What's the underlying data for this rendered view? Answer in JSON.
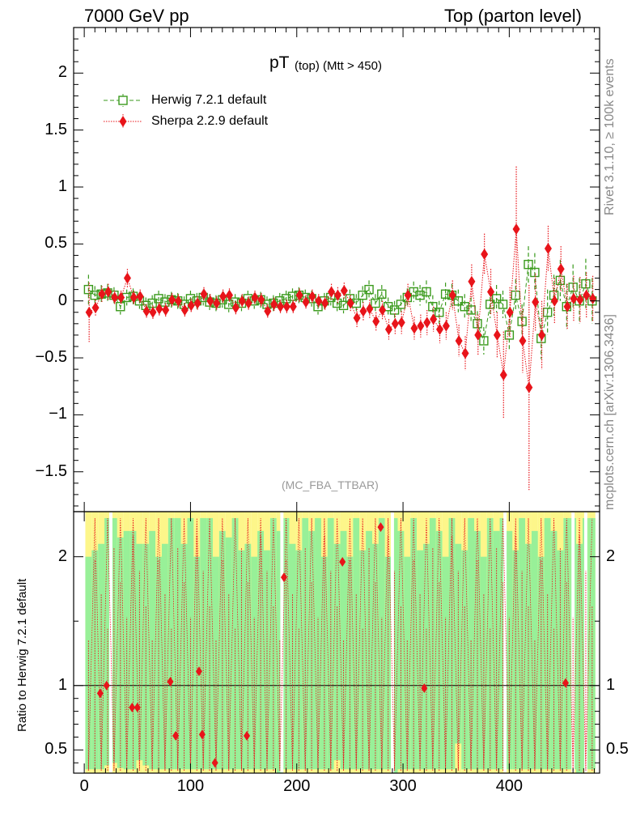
{
  "header": {
    "left": "7000 GeV pp",
    "right": "Top (parton level)"
  },
  "side_labels": {
    "rivet": "Rivet 3.1.10, ≥ 100k events",
    "mcplots": "mcplots.cern.ch [arXiv:1306.3436]"
  },
  "chart_data": [
    {
      "type": "scatter",
      "title_main": "pT",
      "title_sub": "(top) (Mtt > 450)",
      "analysis_tag": "(MC_FBA_TTBAR)",
      "xlim": [
        -10,
        485
      ],
      "ylim": [
        -1.85,
        2.4
      ],
      "y_ticks": [
        -1.5,
        -1,
        -0.5,
        0,
        0.5,
        1,
        1.5,
        2
      ],
      "y_tick_labels": [
        "−1.5",
        "−1",
        "−0.5",
        "0",
        "0.5",
        "1",
        "1.5",
        "2"
      ],
      "legend_position": "top-left",
      "series": [
        {
          "name": "Herwig 7.2.1 default",
          "color": "#3a9a1c",
          "marker": "open-square",
          "line": "dashed",
          "x": [
            4,
            10,
            16,
            22,
            28,
            34,
            40,
            46,
            52,
            58,
            64,
            70,
            76,
            82,
            88,
            94,
            100,
            106,
            112,
            118,
            124,
            130,
            136,
            142,
            148,
            154,
            160,
            166,
            172,
            178,
            184,
            190,
            196,
            202,
            208,
            214,
            220,
            226,
            232,
            238,
            244,
            250,
            256,
            262,
            268,
            274,
            280,
            286,
            292,
            298,
            304,
            310,
            316,
            322,
            328,
            334,
            340,
            346,
            352,
            358,
            364,
            370,
            376,
            382,
            388,
            394,
            400,
            406,
            412,
            418,
            424,
            430,
            436,
            442,
            448,
            454,
            460,
            466,
            472,
            478
          ],
          "y": [
            0.1,
            0.05,
            0.06,
            0.07,
            0.05,
            -0.05,
            0.03,
            0.04,
            0.0,
            -0.04,
            -0.02,
            0.02,
            -0.01,
            0.01,
            0.0,
            -0.03,
            0.02,
            0.0,
            0.03,
            -0.01,
            -0.02,
            0.01,
            -0.03,
            -0.01,
            -0.02,
            0.02,
            0.0,
            0.01,
            -0.03,
            -0.02,
            0.0,
            0.02,
            0.04,
            0.05,
            0.03,
            0.02,
            -0.05,
            0.0,
            0.03,
            -0.02,
            -0.04,
            0.02,
            -0.02,
            0.05,
            0.1,
            -0.02,
            0.06,
            -0.05,
            -0.08,
            -0.03,
            0.03,
            0.08,
            0.05,
            0.08,
            -0.05,
            -0.1,
            0.06,
            0.05,
            0.0,
            -0.05,
            -0.08,
            -0.2,
            -0.35,
            -0.03,
            0.02,
            -0.03,
            -0.3,
            0.05,
            -0.18,
            0.32,
            0.25,
            -0.33,
            -0.1,
            0.05,
            0.18,
            -0.05,
            0.12,
            0.0,
            0.15,
            0.0
          ],
          "yerr": [
            0.13,
            0.08,
            0.08,
            0.08,
            0.07,
            0.07,
            0.07,
            0.07,
            0.07,
            0.07,
            0.07,
            0.07,
            0.07,
            0.07,
            0.07,
            0.07,
            0.07,
            0.07,
            0.07,
            0.07,
            0.07,
            0.07,
            0.07,
            0.07,
            0.07,
            0.07,
            0.07,
            0.07,
            0.07,
            0.07,
            0.07,
            0.07,
            0.07,
            0.07,
            0.07,
            0.07,
            0.07,
            0.07,
            0.07,
            0.07,
            0.07,
            0.08,
            0.08,
            0.08,
            0.08,
            0.08,
            0.08,
            0.08,
            0.08,
            0.08,
            0.08,
            0.09,
            0.09,
            0.1,
            0.1,
            0.1,
            0.1,
            0.1,
            0.1,
            0.11,
            0.11,
            0.11,
            0.12,
            0.12,
            0.12,
            0.12,
            0.14,
            0.14,
            0.15,
            0.16,
            0.17,
            0.18,
            0.2,
            0.18,
            0.18,
            0.2,
            0.2,
            0.2,
            0.22,
            0.2
          ]
        },
        {
          "name": "Sherpa 2.2.9 default",
          "color": "#e8141a",
          "marker": "filled-diamond",
          "line": "dotted",
          "x": [
            4,
            10,
            16,
            22,
            28,
            34,
            40,
            46,
            52,
            58,
            64,
            70,
            76,
            82,
            88,
            94,
            100,
            106,
            112,
            118,
            124,
            130,
            136,
            142,
            148,
            154,
            160,
            166,
            172,
            178,
            184,
            190,
            196,
            202,
            208,
            214,
            220,
            226,
            232,
            238,
            244,
            250,
            256,
            262,
            268,
            274,
            280,
            286,
            292,
            298,
            304,
            310,
            316,
            322,
            328,
            334,
            340,
            346,
            352,
            358,
            364,
            370,
            376,
            382,
            388,
            394,
            400,
            406,
            412,
            418,
            424,
            430,
            436,
            442,
            448,
            454,
            460,
            466,
            472,
            478
          ],
          "y": [
            -0.1,
            -0.06,
            0.06,
            0.08,
            0.03,
            0.03,
            0.2,
            0.03,
            0.04,
            -0.09,
            -0.1,
            -0.07,
            -0.08,
            0.01,
            0.0,
            -0.08,
            -0.04,
            -0.02,
            0.06,
            0.0,
            -0.02,
            0.04,
            0.05,
            -0.06,
            0.0,
            -0.02,
            0.03,
            0.01,
            -0.09,
            -0.03,
            -0.05,
            -0.05,
            -0.05,
            0.05,
            -0.01,
            0.04,
            0.0,
            -0.02,
            0.08,
            0.05,
            0.09,
            -0.02,
            -0.15,
            -0.09,
            -0.07,
            -0.18,
            -0.08,
            -0.25,
            -0.2,
            -0.19,
            0.05,
            -0.24,
            -0.22,
            -0.19,
            -0.16,
            -0.25,
            -0.22,
            0.05,
            -0.35,
            -0.46,
            0.17,
            -0.3,
            0.41,
            0.08,
            -0.3,
            -0.65,
            -0.1,
            0.63,
            -0.35,
            -0.76,
            -0.01,
            -0.3,
            0.46,
            0.0,
            0.28,
            -0.05,
            0.02,
            0.01,
            0.05,
            0.02
          ],
          "yerr": [
            0.26,
            0.07,
            0.07,
            0.07,
            0.06,
            0.06,
            0.08,
            0.06,
            0.06,
            0.06,
            0.06,
            0.06,
            0.06,
            0.06,
            0.06,
            0.06,
            0.06,
            0.06,
            0.06,
            0.06,
            0.06,
            0.06,
            0.06,
            0.06,
            0.06,
            0.06,
            0.06,
            0.06,
            0.06,
            0.06,
            0.06,
            0.06,
            0.06,
            0.06,
            0.06,
            0.06,
            0.06,
            0.06,
            0.07,
            0.07,
            0.07,
            0.07,
            0.08,
            0.08,
            0.08,
            0.08,
            0.08,
            0.09,
            0.09,
            0.1,
            0.1,
            0.1,
            0.1,
            0.11,
            0.11,
            0.12,
            0.12,
            0.13,
            0.14,
            0.15,
            0.15,
            0.18,
            0.18,
            0.2,
            0.2,
            0.38,
            0.22,
            0.55,
            0.28,
            0.9,
            0.25,
            0.3,
            0.2,
            0.2,
            0.2,
            0.2,
            0.2,
            0.2,
            0.2,
            0.2
          ]
        }
      ]
    },
    {
      "type": "scatter",
      "ylabel": "Ratio to Herwig 7.2.1 default",
      "xlim": [
        -10,
        485
      ],
      "ylim": [
        0.32,
        2.35
      ],
      "y_ticks": [
        0.5,
        1,
        2
      ],
      "y_tick_labels": [
        "0.5",
        "1",
        "2"
      ],
      "x_ticks": [
        0,
        100,
        200,
        300,
        400
      ],
      "x_tick_labels": [
        "0",
        "100",
        "200",
        "300",
        "400"
      ],
      "reference_line": 1,
      "band_colors": {
        "inner": "#98f098",
        "outer": "#fdf68a"
      },
      "bands": {
        "x": [
          4,
          10,
          16,
          22,
          28,
          34,
          40,
          46,
          52,
          58,
          64,
          70,
          76,
          82,
          88,
          94,
          100,
          106,
          112,
          118,
          124,
          130,
          136,
          142,
          148,
          154,
          160,
          166,
          172,
          178,
          184,
          190,
          196,
          202,
          208,
          214,
          220,
          226,
          232,
          238,
          244,
          250,
          256,
          262,
          268,
          274,
          280,
          286,
          292,
          298,
          304,
          310,
          316,
          322,
          328,
          334,
          340,
          346,
          352,
          358,
          364,
          370,
          376,
          382,
          388,
          394,
          400,
          406,
          412,
          418,
          424,
          430,
          436,
          442,
          448,
          454,
          460,
          466,
          472,
          478
        ],
        "inner_low": [
          0.35,
          0.35,
          0.35,
          0.38,
          0.4,
          0.36,
          0.35,
          0.35,
          0.42,
          0.38,
          0.35,
          0.35,
          0.35,
          0.35,
          0.35,
          0.35,
          0.35,
          0.35,
          0.35,
          0.35,
          0.35,
          0.35,
          0.35,
          0.35,
          0.35,
          0.35,
          0.35,
          0.35,
          0.35,
          0.35,
          0.32,
          0.35,
          0.35,
          0.35,
          0.35,
          0.35,
          0.35,
          0.35,
          0.35,
          0.42,
          0.35,
          0.35,
          0.35,
          0.35,
          0.35,
          0.35,
          0.35,
          0.35,
          0.32,
          0.35,
          0.35,
          0.35,
          0.35,
          0.35,
          0.35,
          0.35,
          0.35,
          0.35,
          0.55,
          0.35,
          0.35,
          0.35,
          0.35,
          0.35,
          0.35,
          0.35,
          0.35,
          0.35,
          0.35,
          0.35,
          0.35,
          0.35,
          0.35,
          0.35,
          0.35,
          0.35,
          0.35,
          0.32,
          0.35,
          0.35
        ],
        "inner_high": [
          2.0,
          2.05,
          2.1,
          2.3,
          2.3,
          2.15,
          2.2,
          2.2,
          2.1,
          2.1,
          2.2,
          2.0,
          2.1,
          2.3,
          2.3,
          2.1,
          2.3,
          2.0,
          2.3,
          2.3,
          2.0,
          2.2,
          2.15,
          2.3,
          2.05,
          2.1,
          2.0,
          2.2,
          2.05,
          2.3,
          2.2,
          2.3,
          2.1,
          2.05,
          2.3,
          2.2,
          2.3,
          2.0,
          2.3,
          2.1,
          2.2,
          2.0,
          2.3,
          2.05,
          2.2,
          2.1,
          2.3,
          2.0,
          2.3,
          2.2,
          2.0,
          2.3,
          2.05,
          2.1,
          2.3,
          2.2,
          2.0,
          2.3,
          2.1,
          2.05,
          2.3,
          2.2,
          2.0,
          2.3,
          2.2,
          2.3,
          2.2,
          2.05,
          2.3,
          2.1,
          2.2,
          2.0,
          2.3,
          2.2,
          2.05,
          2.3,
          2.3,
          2.1,
          2.3,
          2.3
        ],
        "outer_low": [
          0.32,
          0.32,
          0.32,
          0.32,
          0.32,
          0.32,
          0.32,
          0.32,
          0.32,
          0.32,
          0.32,
          0.32,
          0.32,
          0.32,
          0.32,
          0.32,
          0.32,
          0.32,
          0.32,
          0.32,
          0.32,
          0.32,
          0.32,
          0.32,
          0.32,
          0.32,
          0.32,
          0.32,
          0.32,
          0.32,
          0.32,
          0.32,
          0.32,
          0.32,
          0.32,
          0.32,
          0.32,
          0.32,
          0.32,
          0.32,
          0.32,
          0.32,
          0.32,
          0.32,
          0.32,
          0.32,
          0.32,
          0.32,
          0.32,
          0.32,
          0.32,
          0.32,
          0.32,
          0.32,
          0.32,
          0.32,
          0.32,
          0.32,
          0.32,
          0.32,
          0.32,
          0.32,
          0.32,
          0.32,
          0.32,
          0.32,
          0.32,
          0.32,
          0.32,
          0.32,
          0.32,
          0.32,
          0.32,
          0.32,
          0.32,
          0.32,
          0.32,
          0.32,
          0.32,
          0.32
        ],
        "outer_high": [
          2.35,
          2.35,
          2.35,
          2.35,
          2.35,
          2.35,
          2.35,
          2.35,
          2.35,
          2.35,
          2.35,
          2.35,
          2.35,
          2.35,
          2.35,
          2.35,
          2.35,
          2.35,
          2.35,
          2.35,
          2.35,
          2.35,
          2.35,
          2.35,
          2.35,
          2.35,
          2.35,
          2.35,
          2.35,
          2.35,
          2.35,
          2.35,
          2.35,
          2.35,
          2.35,
          2.35,
          2.35,
          2.35,
          2.35,
          2.35,
          2.35,
          2.35,
          2.35,
          2.35,
          2.35,
          2.35,
          2.35,
          2.35,
          2.35,
          2.35,
          2.35,
          2.35,
          2.35,
          2.35,
          2.35,
          2.35,
          2.35,
          2.35,
          2.35,
          2.35,
          2.35,
          2.35,
          2.35,
          2.35,
          2.35,
          2.35,
          2.35,
          2.35,
          2.35,
          2.35,
          2.35,
          2.35,
          2.35,
          2.35,
          2.35,
          2.35,
          2.35,
          2.35,
          2.35,
          2.35
        ],
        "gaps_x": [
          25,
          186,
          290,
          396,
          460,
          472
        ]
      },
      "ratio_points": {
        "x": [
          15,
          21,
          45,
          50,
          81,
          86,
          108,
          111,
          123,
          153,
          188,
          243,
          279,
          320,
          453
        ],
        "y": [
          0.94,
          1.0,
          0.83,
          0.83,
          1.03,
          0.61,
          1.11,
          0.62,
          0.4,
          0.61,
          1.84,
          1.96,
          2.23,
          0.98,
          1.02
        ]
      }
    }
  ]
}
